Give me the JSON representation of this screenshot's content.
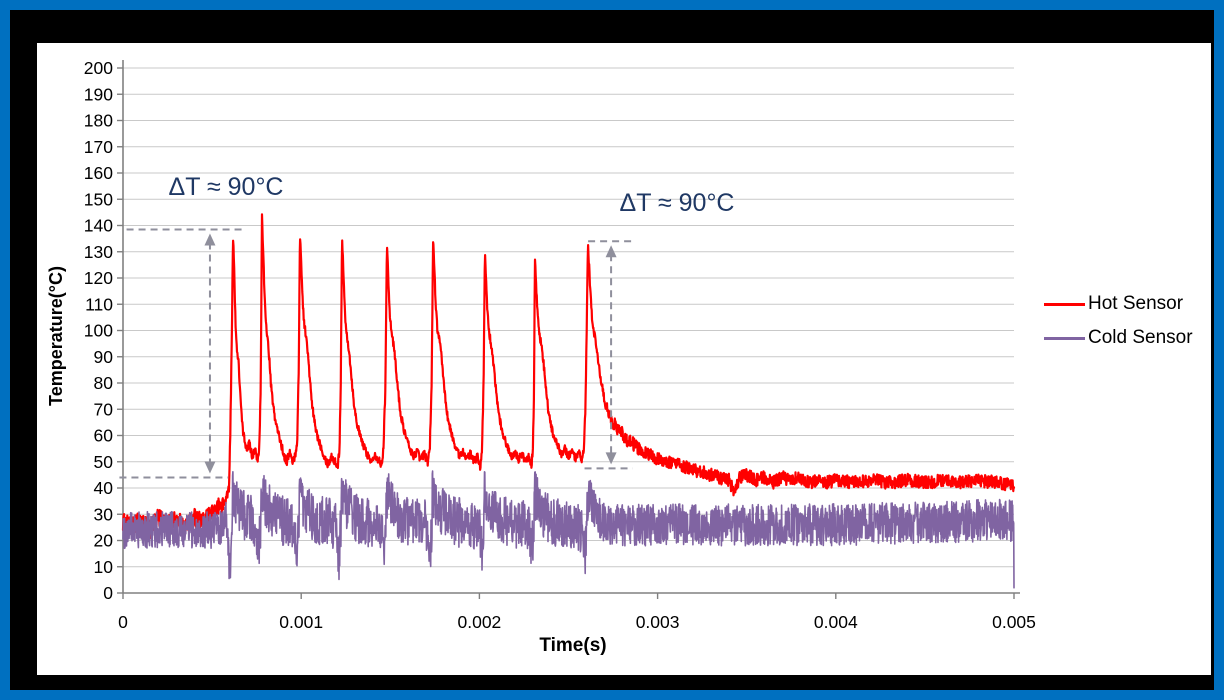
{
  "frame": {
    "outer_border_color": "#0070C0",
    "background_color": "#000000",
    "panel_color": "#ffffff"
  },
  "chart_data": {
    "type": "line",
    "title": "",
    "xlabel": "Time(s)",
    "ylabel": "Temperature(°C)",
    "xlim": [
      0,
      0.005
    ],
    "ylim": [
      0,
      200
    ],
    "x_ticks": [
      {
        "value": 0,
        "label": "0"
      },
      {
        "value": 0.001,
        "label": "0.001"
      },
      {
        "value": 0.002,
        "label": "0.002"
      },
      {
        "value": 0.003,
        "label": "0.003"
      },
      {
        "value": 0.004,
        "label": "0.004"
      },
      {
        "value": 0.005,
        "label": "0.005"
      }
    ],
    "y_ticks": [
      0,
      10,
      20,
      30,
      40,
      50,
      60,
      70,
      80,
      90,
      100,
      110,
      120,
      130,
      140,
      150,
      160,
      170,
      180,
      190,
      200
    ],
    "grid": "horizontal",
    "legend_position": "right",
    "colors": {
      "gridline": "#c9c9c9",
      "axis": "#808080",
      "tick_label": "#000000",
      "annotation_text": "#1F3864",
      "arrow": "#8f8f9c"
    },
    "annotations": [
      {
        "text": "ΔT ≈ 90°C",
        "label_t_s": 0.00055,
        "label_v_c": 153,
        "arrow": {
          "t_s": 0.000488,
          "v_top_c": 138.5,
          "v_bottom_c": 44,
          "top_dash_t_s": [
            2e-05,
            0.00067
          ],
          "bottom_dash_t_s": [
            -2e-05,
            0.00059
          ]
        }
      },
      {
        "text": "ΔT ≈ 90°C",
        "label_t_s": 0.0031,
        "label_v_c": 149,
        "arrow": {
          "t_s": 0.002739,
          "v_top_c": 134,
          "v_bottom_c": 47.5,
          "top_dash_t_s": [
            0.00261,
            0.00286
          ],
          "bottom_dash_t_s": [
            0.00259,
            0.00286
          ]
        }
      }
    ],
    "spike_times_ms": [
      0.617,
      0.78,
      0.993,
      1.229,
      1.481,
      1.74,
      2.031,
      2.312,
      2.609
    ],
    "spike_peaks_c": [
      135,
      144,
      137,
      136,
      133,
      135,
      129,
      128,
      133
    ],
    "series": [
      {
        "name": "Hot Sensor",
        "color": "#FF0000",
        "line_width": 2.2,
        "baseline_c": 27,
        "tail_c": 42,
        "noise": {
          "baseline": 3.5,
          "spikes": 1.5,
          "tail": 2.5
        },
        "keypoints_t_ms_v_c": [
          [
            0,
            27
          ],
          [
            0.05,
            25
          ],
          [
            0.1,
            28
          ],
          [
            0.15,
            24
          ],
          [
            0.2,
            29
          ],
          [
            0.25,
            26
          ],
          [
            0.3,
            28
          ],
          [
            0.35,
            25
          ],
          [
            0.4,
            29
          ],
          [
            0.45,
            27
          ],
          [
            0.5,
            30
          ],
          [
            0.54,
            33
          ],
          [
            0.57,
            34
          ],
          [
            0.595,
            40
          ],
          [
            0.602,
            60
          ],
          [
            0.61,
            95
          ],
          [
            0.617,
            135
          ],
          [
            0.622,
            128
          ],
          [
            0.627,
            115
          ],
          [
            0.633,
            100
          ],
          [
            0.64,
            92
          ],
          [
            0.648,
            88
          ],
          [
            0.655,
            80
          ],
          [
            0.663,
            70
          ],
          [
            0.672,
            62
          ],
          [
            0.683,
            58
          ],
          [
            0.695,
            55
          ],
          [
            0.71,
            57
          ],
          [
            0.725,
            52
          ],
          [
            0.74,
            55
          ],
          [
            0.755,
            50
          ],
          [
            0.765,
            55
          ],
          [
            0.773,
            80
          ],
          [
            0.78,
            144
          ],
          [
            0.786,
            132
          ],
          [
            0.792,
            118
          ],
          [
            0.8,
            104
          ],
          [
            0.81,
            98
          ],
          [
            0.82,
            90
          ],
          [
            0.832,
            78
          ],
          [
            0.845,
            70
          ],
          [
            0.86,
            64
          ],
          [
            0.875,
            60
          ],
          [
            0.89,
            56
          ],
          [
            0.905,
            52
          ],
          [
            0.92,
            50
          ],
          [
            0.935,
            54
          ],
          [
            0.95,
            50
          ],
          [
            0.965,
            52
          ],
          [
            0.978,
            58
          ],
          [
            0.986,
            85
          ],
          [
            0.993,
            137
          ],
          [
            1.0,
            126
          ],
          [
            1.008,
            112
          ],
          [
            1.016,
            103
          ],
          [
            1.025,
            99
          ],
          [
            1.035,
            93
          ],
          [
            1.048,
            82
          ],
          [
            1.06,
            72
          ],
          [
            1.075,
            65
          ],
          [
            1.09,
            60
          ],
          [
            1.11,
            56
          ],
          [
            1.13,
            52
          ],
          [
            1.15,
            49
          ],
          [
            1.17,
            52
          ],
          [
            1.19,
            50
          ],
          [
            1.205,
            48
          ],
          [
            1.215,
            55
          ],
          [
            1.222,
            80
          ],
          [
            1.229,
            136
          ],
          [
            1.236,
            124
          ],
          [
            1.243,
            110
          ],
          [
            1.251,
            101
          ],
          [
            1.26,
            97
          ],
          [
            1.272,
            90
          ],
          [
            1.285,
            80
          ],
          [
            1.3,
            70
          ],
          [
            1.315,
            64
          ],
          [
            1.33,
            60
          ],
          [
            1.35,
            56
          ],
          [
            1.37,
            53
          ],
          [
            1.39,
            50
          ],
          [
            1.41,
            53
          ],
          [
            1.43,
            51
          ],
          [
            1.45,
            49
          ],
          [
            1.462,
            55
          ],
          [
            1.472,
            78
          ],
          [
            1.481,
            133
          ],
          [
            1.488,
            122
          ],
          [
            1.496,
            108
          ],
          [
            1.505,
            100
          ],
          [
            1.515,
            96
          ],
          [
            1.528,
            89
          ],
          [
            1.542,
            78
          ],
          [
            1.558,
            68
          ],
          [
            1.574,
            63
          ],
          [
            1.59,
            59
          ],
          [
            1.61,
            55
          ],
          [
            1.63,
            52
          ],
          [
            1.65,
            54
          ],
          [
            1.67,
            51
          ],
          [
            1.69,
            53
          ],
          [
            1.71,
            50
          ],
          [
            1.722,
            56
          ],
          [
            1.732,
            80
          ],
          [
            1.74,
            135
          ],
          [
            1.747,
            123
          ],
          [
            1.755,
            110
          ],
          [
            1.764,
            101
          ],
          [
            1.774,
            97
          ],
          [
            1.787,
            90
          ],
          [
            1.8,
            80
          ],
          [
            1.815,
            70
          ],
          [
            1.83,
            64
          ],
          [
            1.85,
            59
          ],
          [
            1.87,
            55
          ],
          [
            1.89,
            52
          ],
          [
            1.91,
            54
          ],
          [
            1.93,
            51
          ],
          [
            1.95,
            53
          ],
          [
            1.97,
            50
          ],
          [
            1.99,
            52
          ],
          [
            2.005,
            48
          ],
          [
            2.014,
            55
          ],
          [
            2.023,
            78
          ],
          [
            2.031,
            129
          ],
          [
            2.038,
            118
          ],
          [
            2.046,
            106
          ],
          [
            2.055,
            99
          ],
          [
            2.065,
            95
          ],
          [
            2.078,
            88
          ],
          [
            2.092,
            78
          ],
          [
            2.108,
            68
          ],
          [
            2.124,
            63
          ],
          [
            2.14,
            59
          ],
          [
            2.16,
            55
          ],
          [
            2.18,
            52
          ],
          [
            2.2,
            54
          ],
          [
            2.22,
            51
          ],
          [
            2.24,
            53
          ],
          [
            2.26,
            50
          ],
          [
            2.28,
            52
          ],
          [
            2.292,
            48
          ],
          [
            2.3,
            55
          ],
          [
            2.306,
            75
          ],
          [
            2.312,
            128
          ],
          [
            2.319,
            117
          ],
          [
            2.327,
            106
          ],
          [
            2.336,
            99
          ],
          [
            2.346,
            95
          ],
          [
            2.359,
            88
          ],
          [
            2.373,
            78
          ],
          [
            2.389,
            68
          ],
          [
            2.405,
            63
          ],
          [
            2.42,
            59
          ],
          [
            2.44,
            56
          ],
          [
            2.46,
            53
          ],
          [
            2.48,
            55
          ],
          [
            2.5,
            52
          ],
          [
            2.52,
            54
          ],
          [
            2.54,
            51
          ],
          [
            2.56,
            53
          ],
          [
            2.575,
            50
          ],
          [
            2.586,
            55
          ],
          [
            2.595,
            70
          ],
          [
            2.602,
            100
          ],
          [
            2.609,
            133
          ],
          [
            2.616,
            124
          ],
          [
            2.624,
            113
          ],
          [
            2.632,
            105
          ],
          [
            2.641,
            100
          ],
          [
            2.652,
            96
          ],
          [
            2.664,
            90
          ],
          [
            2.677,
            83
          ],
          [
            2.69,
            78
          ],
          [
            2.7,
            74
          ],
          [
            2.71,
            72
          ],
          [
            2.72,
            69
          ],
          [
            2.74,
            66
          ],
          [
            2.76,
            64
          ],
          [
            2.78,
            62
          ],
          [
            2.8,
            61
          ],
          [
            2.83,
            58
          ],
          [
            2.86,
            57
          ],
          [
            2.89,
            55
          ],
          [
            2.92,
            54
          ],
          [
            2.95,
            53
          ],
          [
            3.0,
            51
          ],
          [
            3.05,
            50
          ],
          [
            3.1,
            49
          ],
          [
            3.15,
            48
          ],
          [
            3.2,
            47
          ],
          [
            3.25,
            46
          ],
          [
            3.3,
            45
          ],
          [
            3.35,
            44
          ],
          [
            3.4,
            43
          ],
          [
            3.43,
            38
          ],
          [
            3.46,
            44
          ],
          [
            3.5,
            45
          ],
          [
            3.55,
            43
          ],
          [
            3.6,
            44
          ],
          [
            3.65,
            42
          ],
          [
            3.7,
            44
          ],
          [
            3.75,
            43
          ],
          [
            3.8,
            44
          ],
          [
            3.85,
            42
          ],
          [
            3.9,
            43
          ],
          [
            3.95,
            42
          ],
          [
            4.0,
            43
          ],
          [
            4.1,
            42
          ],
          [
            4.2,
            43
          ],
          [
            4.3,
            42
          ],
          [
            4.4,
            43
          ],
          [
            4.5,
            42
          ],
          [
            4.6,
            43
          ],
          [
            4.7,
            42
          ],
          [
            4.8,
            43
          ],
          [
            4.9,
            42
          ],
          [
            5.0,
            41
          ]
        ]
      },
      {
        "name": "Cold Sensor",
        "color": "#8064A2",
        "line_width": 1.6,
        "mean_keypoints_t_ms_v_c": [
          [
            0,
            24
          ],
          [
            0.5,
            24
          ],
          [
            0.6,
            26
          ],
          [
            1.0,
            26
          ],
          [
            2.0,
            26
          ],
          [
            2.6,
            25
          ],
          [
            3.0,
            26
          ],
          [
            4.0,
            26
          ],
          [
            4.6,
            27
          ],
          [
            4.95,
            28
          ],
          [
            5.0,
            27
          ]
        ],
        "noise_amplitude_c": {
          "baseline": 7,
          "spikes": 9.5,
          "tail": 8
        },
        "bump_amplitude_c": 13,
        "dip_depths_c": [
          16,
          9,
          8,
          13,
          8,
          12,
          9,
          8,
          10
        ],
        "final_value_c": 2
      }
    ]
  }
}
